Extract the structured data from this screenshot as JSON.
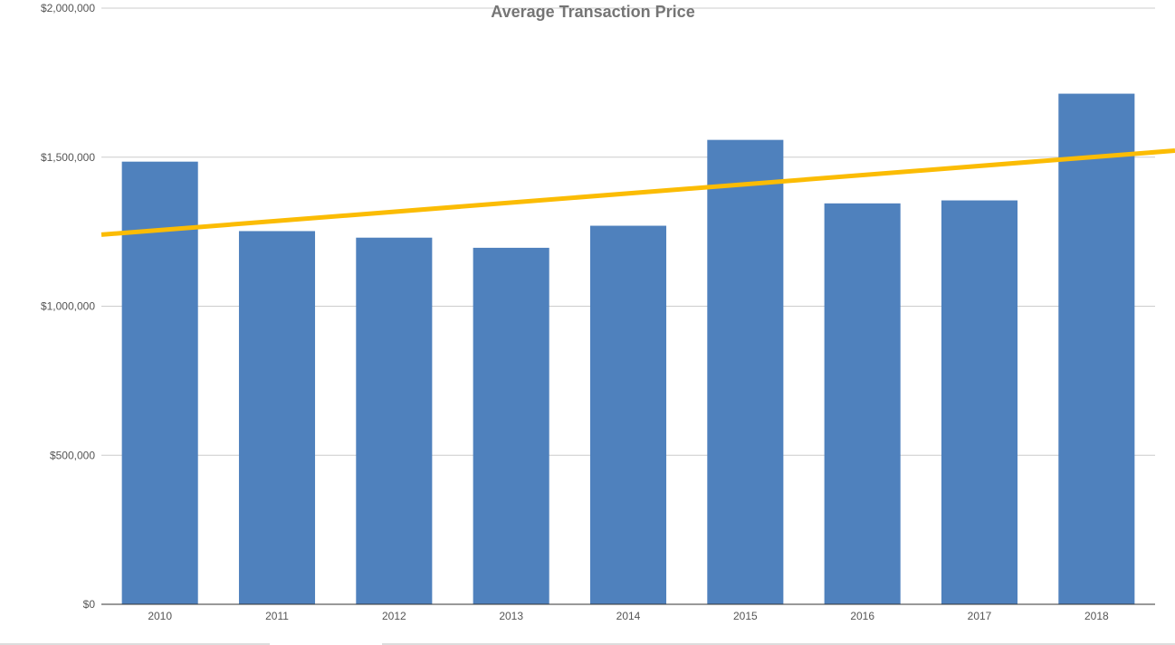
{
  "chart_data": {
    "type": "bar",
    "title": "Average Transaction Price",
    "xlabel": "",
    "ylabel": "",
    "categories": [
      "2010",
      "2011",
      "2012",
      "2013",
      "2014",
      "2015",
      "2016",
      "2017",
      "2018"
    ],
    "series": [
      {
        "values": [
          1485000,
          1252000,
          1230000,
          1196000,
          1270000,
          1558000,
          1345000,
          1355000,
          1713000
        ],
        "color": "#4f81bd"
      }
    ],
    "trendline": {
      "type": "linear",
      "color": "#fbbc04",
      "start_value": 1240000,
      "end_value": 1522000
    },
    "ylim": [
      0,
      2000000
    ],
    "y_ticks": [
      0,
      500000,
      1000000,
      1500000,
      2000000
    ],
    "y_tick_labels": [
      "$0",
      "$500,000",
      "$1,000,000",
      "$1,500,000",
      "$2,000,000"
    ],
    "grid": true,
    "legend": "none"
  }
}
